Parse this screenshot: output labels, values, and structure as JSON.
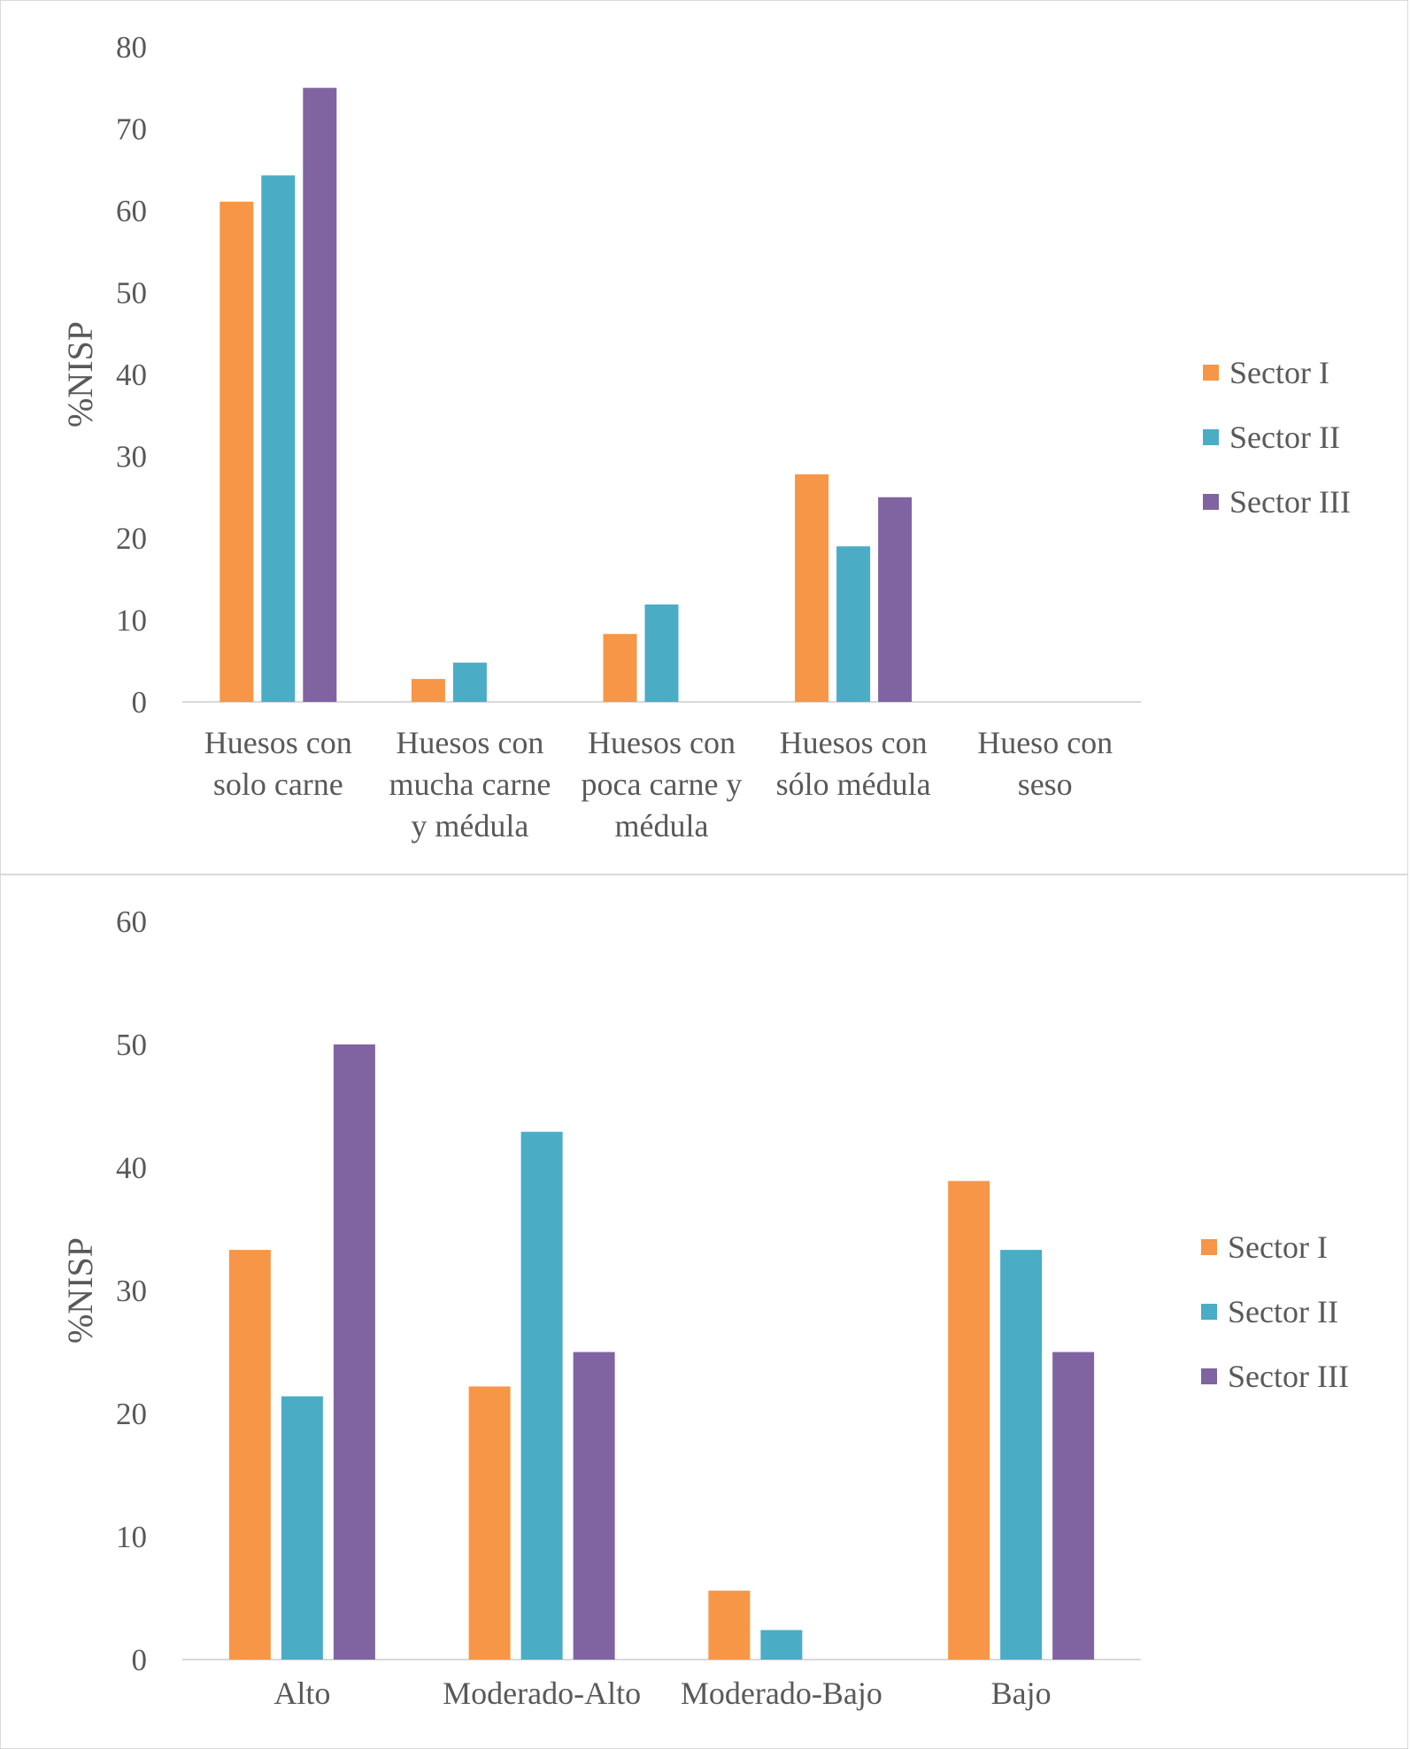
{
  "charts": [
    {
      "type": "bar",
      "title": "",
      "xlabel": "",
      "ylabel": "%NISP",
      "ylim": [
        0,
        80
      ],
      "yticks": [
        0,
        10,
        20,
        30,
        40,
        50,
        60,
        70,
        80
      ],
      "categories": [
        [
          "Huesos con",
          "solo carne"
        ],
        [
          "Huesos con",
          "mucha carne",
          "y médula"
        ],
        [
          "Huesos con",
          "poca carne y",
          "médula"
        ],
        [
          "Huesos con",
          "sólo médula"
        ],
        [
          "Hueso con",
          "seso"
        ]
      ],
      "series": [
        {
          "name": "Sector I",
          "color": "#f79646",
          "values": [
            61.1,
            2.8,
            8.3,
            27.8,
            0
          ]
        },
        {
          "name": "Sector II",
          "color": "#4bacc6",
          "values": [
            64.3,
            4.8,
            11.9,
            19.0,
            0
          ]
        },
        {
          "name": "Sector III",
          "color": "#8064a2",
          "values": [
            75.0,
            0,
            0,
            25.0,
            0
          ]
        }
      ],
      "legend": "right"
    },
    {
      "type": "bar",
      "title": "",
      "xlabel": "",
      "ylabel": "%NISP",
      "ylim": [
        0,
        60
      ],
      "yticks": [
        0,
        10,
        20,
        30,
        40,
        50,
        60
      ],
      "categories": [
        [
          "Alto"
        ],
        [
          "Moderado-Alto"
        ],
        [
          "Moderado-Bajo"
        ],
        [
          "Bajo"
        ]
      ],
      "series": [
        {
          "name": "Sector I",
          "color": "#f79646",
          "values": [
            33.3,
            22.2,
            5.6,
            38.9
          ]
        },
        {
          "name": "Sector II",
          "color": "#4bacc6",
          "values": [
            21.4,
            42.9,
            2.4,
            33.3
          ]
        },
        {
          "name": "Sector III",
          "color": "#8064a2",
          "values": [
            50.0,
            25.0,
            0,
            25.0
          ]
        }
      ],
      "legend": "right"
    }
  ]
}
